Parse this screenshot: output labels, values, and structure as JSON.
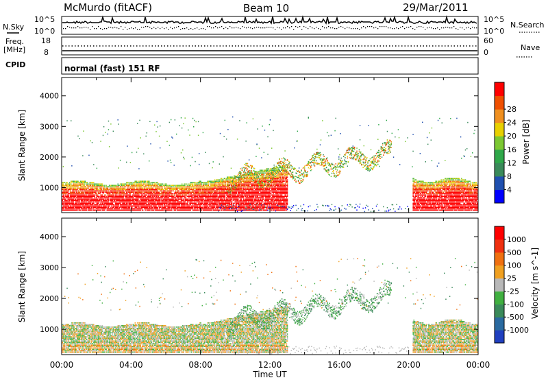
{
  "header": {
    "station": "McMurdo (fitACF)",
    "beam": "Beam 10",
    "date": "29/Mar/2011"
  },
  "noise_panel": {
    "left_label": "N.Sky",
    "right_label": "N.Search",
    "left_ticks": [
      "10^5",
      "10^0"
    ],
    "right_ticks": [
      "10^5",
      "10^0"
    ]
  },
  "freq_panel": {
    "left_label_line1": "Freq.",
    "left_label_line2": "[MHz]",
    "right_label": "Nave",
    "left_ticks": [
      "18",
      "8"
    ],
    "right_ticks": [
      "60",
      "0"
    ]
  },
  "cpid_panel": {
    "label": "CPID",
    "mode_text": "normal (fast) 151 RF"
  },
  "chart_data": [
    {
      "type": "heatmap",
      "title": "Power",
      "xlabel": "Time UT",
      "ylabel": "Slant Range [km]",
      "x_ticks": [
        "00:00",
        "04:00",
        "08:00",
        "12:00",
        "16:00",
        "20:00",
        "00:00"
      ],
      "xlim_hours": [
        0,
        24
      ],
      "y_ticks": [
        1000,
        2000,
        3000,
        4000
      ],
      "ylim": [
        180,
        4600
      ],
      "colorbar": {
        "label": "Power [dB]",
        "ticks": [
          4,
          8,
          12,
          16,
          20,
          24,
          28
        ],
        "colors": [
          "#0000ff",
          "#2050b0",
          "#3a8a5a",
          "#2fa84a",
          "#7cc832",
          "#e8d000",
          "#f09020",
          "#f05000",
          "#ff0000"
        ]
      }
    },
    {
      "type": "heatmap",
      "title": "Velocity",
      "xlabel": "Time UT",
      "ylabel": "Slant Range [km]",
      "x_ticks": [
        "00:00",
        "04:00",
        "08:00",
        "12:00",
        "16:00",
        "20:00",
        "00:00"
      ],
      "xlim_hours": [
        0,
        24
      ],
      "y_ticks": [
        1000,
        2000,
        3000,
        4000
      ],
      "ylim": [
        180,
        4600
      ],
      "colorbar": {
        "label": "Velocity [m s^-1]",
        "ticks": [
          1000,
          500,
          100,
          25,
          -25,
          -100,
          -500,
          -1000
        ],
        "colors": [
          "#2040c0",
          "#2a6aa0",
          "#3a8a5a",
          "#40b040",
          "#b8b8b8",
          "#f0a020",
          "#f07010",
          "#f03010",
          "#ff0000"
        ]
      }
    }
  ],
  "xaxis_title": "Time UT"
}
